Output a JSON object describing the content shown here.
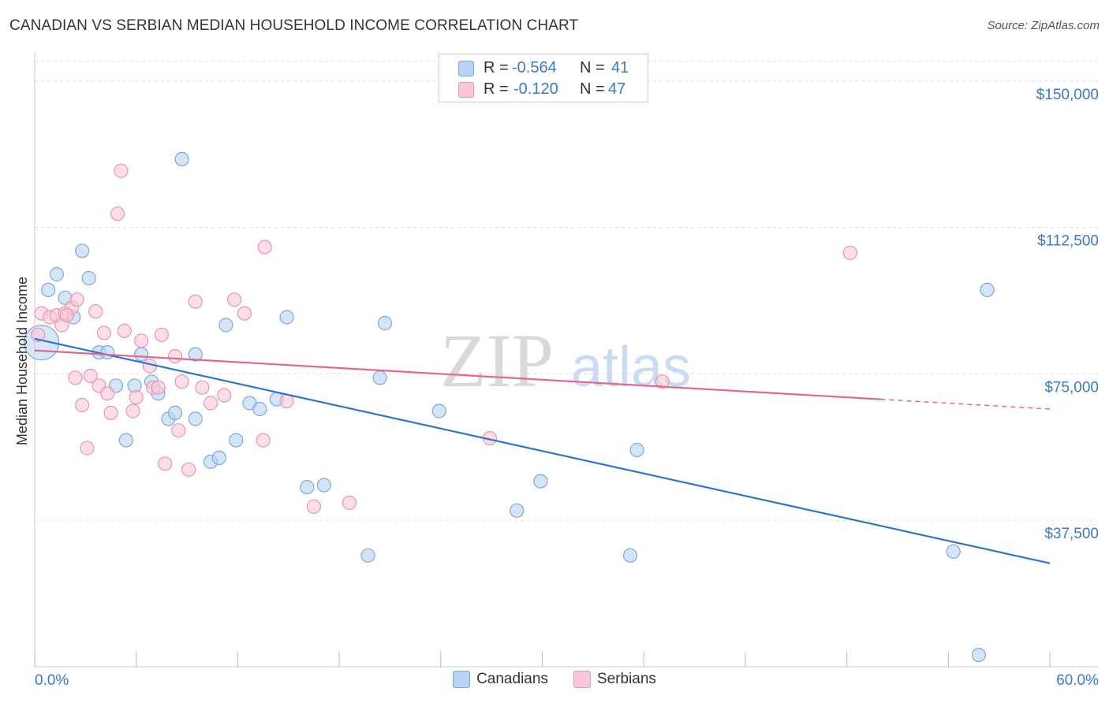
{
  "title": "CANADIAN VS SERBIAN MEDIAN HOUSEHOLD INCOME CORRELATION CHART",
  "source": "Source: ZipAtlas.com",
  "watermark": {
    "zip": "ZIP",
    "atlas": "atlas"
  },
  "legend_top": {
    "rows": [
      {
        "r_label": "R =",
        "r_value": "-0.564",
        "n_label": "N =",
        "n_value": "41"
      },
      {
        "r_label": "R =",
        "r_value": "-0.120",
        "n_label": "N =",
        "n_value": "47"
      }
    ]
  },
  "legend_bottom": {
    "canadians": "Canadians",
    "serbians": "Serbians"
  },
  "colors": {
    "blue_fill": "#b8d3f3",
    "blue_stroke": "#7aa8e3",
    "blue_line": "#2d74d3",
    "pink_fill": "#f8c8d6",
    "pink_stroke": "#ea95ae",
    "pink_line": "#e2678f",
    "axis_text": "#3a78d6",
    "grid": "#dddddd"
  },
  "chart_data": {
    "type": "scatter",
    "title": "CANADIAN VS SERBIAN MEDIAN HOUSEHOLD INCOME CORRELATION CHART",
    "xlabel": "",
    "ylabel": "Median Household Income",
    "xlim": [
      0,
      60
    ],
    "ylim": [
      0,
      155000
    ],
    "x_tick_labels": [
      "0.0%",
      "60.0%"
    ],
    "y_ticks": [
      37500,
      75000,
      112500,
      150000
    ],
    "y_tick_labels": [
      "$37,500",
      "$75,000",
      "$112,500",
      "$150,000"
    ],
    "grid": true,
    "legend_position": "top-center",
    "series": [
      {
        "name": "Canadians",
        "color": "blue",
        "points": [
          [
            0.4,
            83000
          ],
          [
            0.8,
            96500
          ],
          [
            1.3,
            100500
          ],
          [
            1.8,
            94500
          ],
          [
            2.3,
            89500
          ],
          [
            2.8,
            106500
          ],
          [
            3.2,
            99500
          ],
          [
            3.8,
            80500
          ],
          [
            4.3,
            80500
          ],
          [
            4.8,
            72000
          ],
          [
            5.4,
            58000
          ],
          [
            5.9,
            72000
          ],
          [
            6.3,
            80000
          ],
          [
            6.9,
            73000
          ],
          [
            7.3,
            70000
          ],
          [
            7.9,
            63500
          ],
          [
            8.3,
            65000
          ],
          [
            8.7,
            130000
          ],
          [
            9.5,
            63500
          ],
          [
            9.5,
            80000
          ],
          [
            10.4,
            52500
          ],
          [
            10.9,
            53500
          ],
          [
            11.3,
            87500
          ],
          [
            11.9,
            58000
          ],
          [
            12.7,
            67500
          ],
          [
            13.3,
            66000
          ],
          [
            14.3,
            68500
          ],
          [
            14.9,
            89500
          ],
          [
            16.1,
            46000
          ],
          [
            17.1,
            46500
          ],
          [
            19.7,
            28500
          ],
          [
            20.4,
            74000
          ],
          [
            20.7,
            88000
          ],
          [
            23.9,
            65500
          ],
          [
            28.5,
            40000
          ],
          [
            29.9,
            47500
          ],
          [
            35.2,
            28500
          ],
          [
            35.6,
            55500
          ],
          [
            54.3,
            29500
          ],
          [
            56.3,
            96500
          ],
          [
            55.8,
            3000
          ]
        ]
      },
      {
        "name": "Serbians",
        "color": "pink",
        "points": [
          [
            0.4,
            90500
          ],
          [
            0.9,
            89500
          ],
          [
            1.3,
            90000
          ],
          [
            1.6,
            87500
          ],
          [
            1.8,
            90500
          ],
          [
            2.2,
            92000
          ],
          [
            2.4,
            74000
          ],
          [
            2.5,
            94000
          ],
          [
            2.8,
            67000
          ],
          [
            3.1,
            56000
          ],
          [
            3.3,
            74500
          ],
          [
            3.6,
            91000
          ],
          [
            3.8,
            72000
          ],
          [
            4.1,
            85500
          ],
          [
            4.3,
            70000
          ],
          [
            4.5,
            65000
          ],
          [
            4.9,
            116000
          ],
          [
            5.1,
            127000
          ],
          [
            5.3,
            86000
          ],
          [
            5.8,
            65500
          ],
          [
            6.0,
            69000
          ],
          [
            6.3,
            83500
          ],
          [
            6.8,
            77000
          ],
          [
            7.0,
            71500
          ],
          [
            7.5,
            85000
          ],
          [
            7.7,
            52000
          ],
          [
            8.3,
            79500
          ],
          [
            8.5,
            60500
          ],
          [
            8.7,
            73000
          ],
          [
            9.1,
            50500
          ],
          [
            9.5,
            93500
          ],
          [
            10.4,
            67500
          ],
          [
            11.2,
            69500
          ],
          [
            11.8,
            94000
          ],
          [
            12.4,
            90500
          ],
          [
            13.5,
            58000
          ],
          [
            13.6,
            107500
          ],
          [
            14.9,
            68000
          ],
          [
            16.5,
            41000
          ],
          [
            18.6,
            42000
          ],
          [
            26.9,
            58500
          ],
          [
            37.1,
            73000
          ],
          [
            48.2,
            106000
          ],
          [
            0.2,
            85000
          ],
          [
            9.9,
            71500
          ],
          [
            7.3,
            71500
          ],
          [
            1.9,
            90000
          ]
        ]
      }
    ],
    "trendlines": [
      {
        "series": "Canadians",
        "x": [
          0,
          60
        ],
        "y": [
          84000,
          26500
        ]
      },
      {
        "series": "Serbians",
        "x": [
          0,
          50
        ],
        "y": [
          81000,
          68500
        ],
        "dashed_to": [
          60,
          66000
        ]
      }
    ]
  }
}
